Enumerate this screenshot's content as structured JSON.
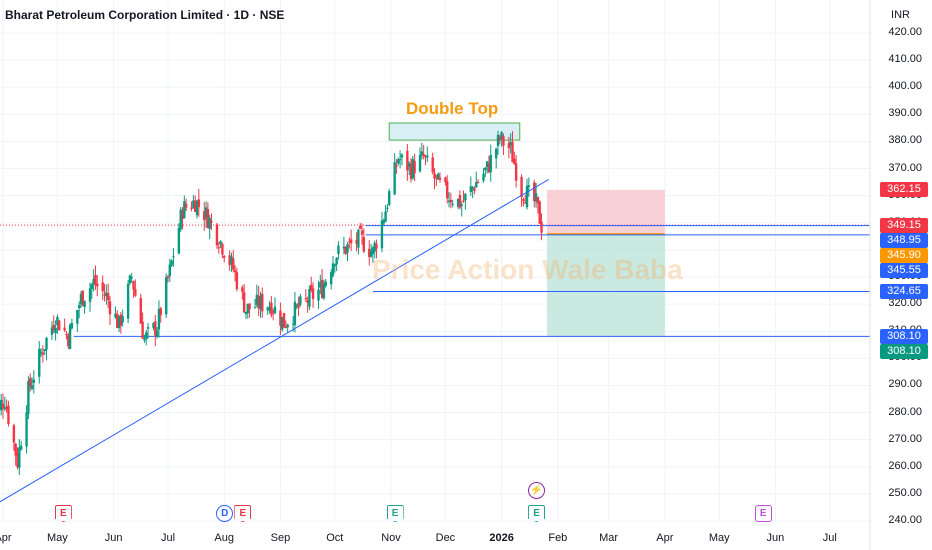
{
  "header": {
    "title": "Bharat Petroleum Corporation Limited · 1D · NSE",
    "currency": "INR"
  },
  "watermark": "Price Action Wale Baba",
  "annotation": "Double Top",
  "chart_data": {
    "type": "candlestick",
    "ylim": [
      240,
      420
    ],
    "y_ticks": [
      "420.00",
      "410.00",
      "400.00",
      "390.00",
      "380.00",
      "370.00",
      "360.00",
      "350.00",
      "340.00",
      "330.00",
      "320.00",
      "310.00",
      "300.00",
      "290.00",
      "280.00",
      "270.00",
      "260.00",
      "250.00",
      "240.00"
    ],
    "x_ticks": [
      "Apr",
      "May",
      "Jun",
      "Jul",
      "Aug",
      "Sep",
      "Oct",
      "Nov",
      "Dec",
      "2026",
      "Feb",
      "Mar",
      "Apr",
      "May",
      "Jun",
      "Jul"
    ],
    "price_labels": [
      {
        "text": "362.15",
        "color": "#f23645"
      },
      {
        "text": "349.15",
        "color": "#f23645"
      },
      {
        "text": "348.95",
        "color": "#2962ff"
      },
      {
        "text": "345.90",
        "color": "#ff9800"
      },
      {
        "text": "345.55",
        "color": "#2962ff"
      },
      {
        "text": "324.65",
        "color": "#2962ff"
      },
      {
        "text": "308.10",
        "color": "#2962ff"
      },
      {
        "text": "308.10",
        "color": "#089981"
      }
    ],
    "key_levels": {
      "stop_loss": 362.15,
      "last_price": 349.15,
      "resistance": 348.95,
      "entry": 345.9,
      "support_1": 345.55,
      "support_2": 324.65,
      "target": 308.1
    },
    "double_top_zone": [
      380.5,
      386.8
    ],
    "anchor_closes": [
      [
        "2025-03-25",
        278
      ],
      [
        "2025-04-02",
        285
      ],
      [
        "2025-04-09",
        262
      ],
      [
        "2025-04-15",
        288
      ],
      [
        "2025-04-22",
        302
      ],
      [
        "2025-04-30",
        315
      ],
      [
        "2025-05-07",
        308
      ],
      [
        "2025-05-14",
        322
      ],
      [
        "2025-05-21",
        328
      ],
      [
        "2025-05-28",
        323
      ],
      [
        "2025-06-04",
        312
      ],
      [
        "2025-06-11",
        330
      ],
      [
        "2025-06-18",
        307
      ],
      [
        "2025-06-25",
        312
      ],
      [
        "2025-07-02",
        332
      ],
      [
        "2025-07-09",
        355
      ],
      [
        "2025-07-16",
        358
      ],
      [
        "2025-07-23",
        352
      ],
      [
        "2025-07-30",
        343
      ],
      [
        "2025-08-06",
        333
      ],
      [
        "2025-08-13",
        318
      ],
      [
        "2025-08-20",
        320
      ],
      [
        "2025-08-27",
        320
      ],
      [
        "2025-09-03",
        313
      ],
      [
        "2025-09-10",
        318
      ],
      [
        "2025-09-17",
        322
      ],
      [
        "2025-09-24",
        326
      ],
      [
        "2025-10-01",
        338
      ],
      [
        "2025-10-08",
        341
      ],
      [
        "2025-10-15",
        344
      ],
      [
        "2025-10-22",
        339
      ],
      [
        "2025-10-29",
        355
      ],
      [
        "2025-11-05",
        374
      ],
      [
        "2025-11-12",
        370
      ],
      [
        "2025-11-19",
        374
      ],
      [
        "2025-11-26",
        365
      ],
      [
        "2025-12-03",
        360
      ],
      [
        "2025-12-10",
        357
      ],
      [
        "2025-12-17",
        364
      ],
      [
        "2025-12-24",
        370
      ],
      [
        "2025-12-31",
        381
      ],
      [
        "2026-01-06",
        377
      ],
      [
        "2026-01-12",
        362
      ],
      [
        "2026-01-16",
        360
      ],
      [
        "2026-01-20",
        357
      ],
      [
        "2026-01-23",
        349
      ]
    ],
    "trendline": {
      "from": [
        "2025-03-25",
        245
      ],
      "to": [
        "2026-01-27",
        366
      ]
    },
    "events": [
      {
        "label": "E",
        "type": "earn-red",
        "date": "2025-05-04"
      },
      {
        "label": "D",
        "type": "div",
        "date": "2025-08-01"
      },
      {
        "label": "E",
        "type": "earn-red",
        "date": "2025-08-11"
      },
      {
        "label": "E",
        "type": "earn-teal",
        "date": "2025-11-03"
      },
      {
        "label": "E",
        "type": "earn-teal",
        "date": "2026-01-20"
      },
      {
        "label": "⚡",
        "type": "split",
        "date": "2026-01-20"
      },
      {
        "label": "E",
        "type": "earn-purple",
        "date": "2026-05-25"
      }
    ]
  }
}
